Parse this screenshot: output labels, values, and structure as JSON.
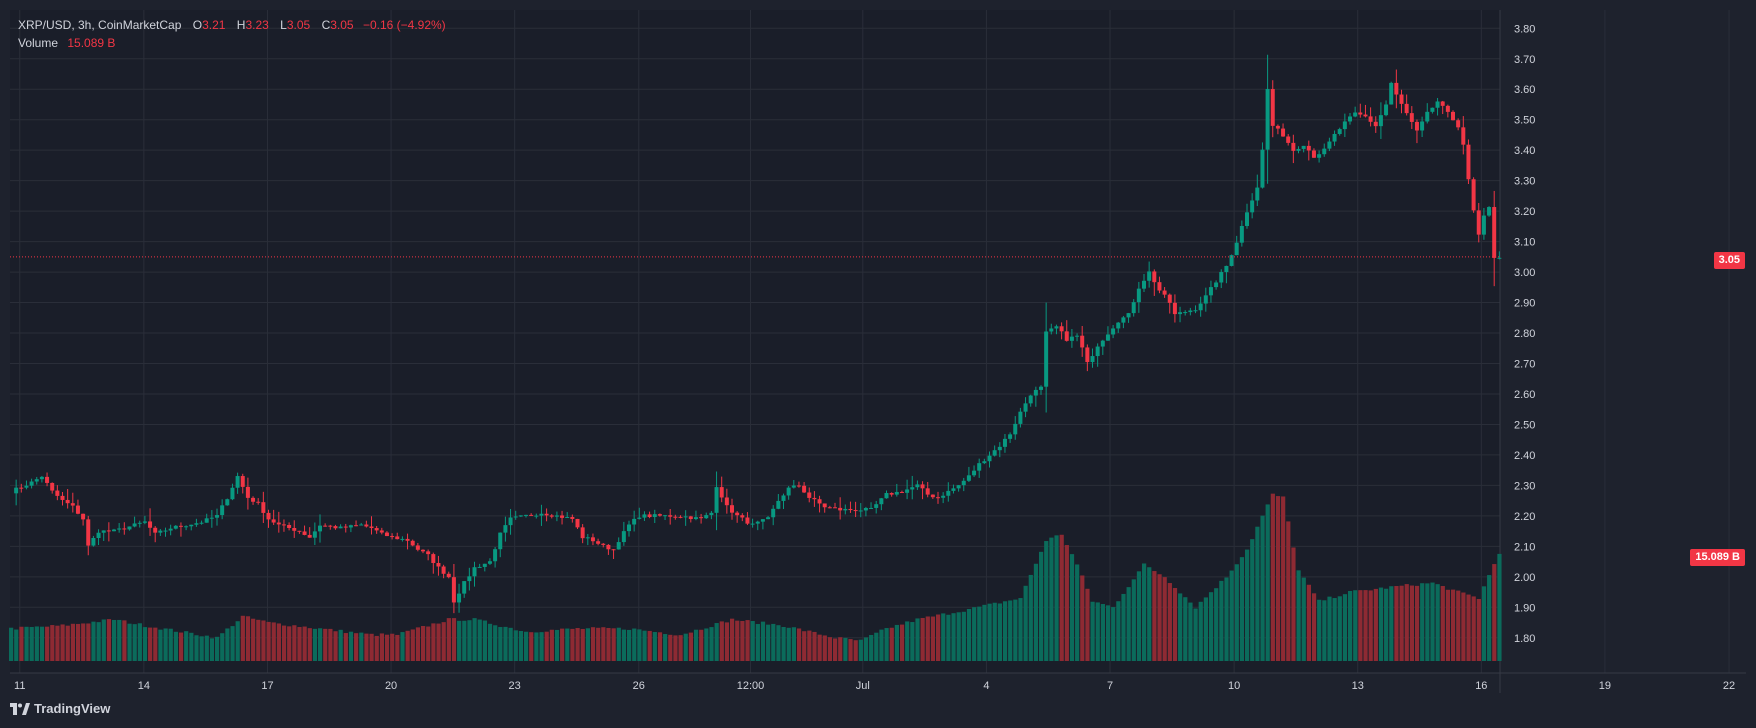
{
  "legend": {
    "title": "XRP/USD, 3h, CoinMarketCap",
    "o_label": "O",
    "o_value": "3.21",
    "h_label": "H",
    "h_value": "3.23",
    "l_label": "L",
    "l_value": "3.05",
    "c_label": "C",
    "c_value": "3.05",
    "change": "−0.16 (−4.92%)",
    "volume_label": "Volume",
    "volume_value": "15.089 B"
  },
  "price_tag": "3.05",
  "volume_tag": "15.089 B",
  "brand": "TradingView",
  "colors": {
    "background": "#1e222d",
    "grid": "#2a2e39",
    "up": "#089981",
    "down": "#f23645",
    "text": "#d1d4dc"
  },
  "chart_data": {
    "type": "candlestick",
    "title": "XRP/USD, 3h, CoinMarketCap",
    "interval": "3h",
    "y_ticks": [
      "3.80",
      "3.70",
      "3.60",
      "3.50",
      "3.40",
      "3.30",
      "3.20",
      "3.10",
      "3.00",
      "2.90",
      "2.80",
      "2.70",
      "2.60",
      "2.50",
      "2.40",
      "2.30",
      "2.20",
      "2.10",
      "2.00",
      "1.90",
      "1.80"
    ],
    "ylim": [
      1.75,
      3.86
    ],
    "x_ticks": [
      {
        "label": "11",
        "t": 1.7
      },
      {
        "label": "14",
        "t": 25.8
      },
      {
        "label": "17",
        "t": 49.8
      },
      {
        "label": "20",
        "t": 73.8
      },
      {
        "label": "23",
        "t": 97.8
      },
      {
        "label": "26",
        "t": 121.9
      },
      {
        "label": "12:00",
        "t": 143.6
      },
      {
        "label": "Jul",
        "t": 165.4
      },
      {
        "label": "4",
        "t": 189.4
      },
      {
        "label": "7",
        "t": 213.4
      },
      {
        "label": "10",
        "t": 237.5
      },
      {
        "label": "13",
        "t": 261.5
      },
      {
        "label": "16",
        "t": 285.5
      },
      {
        "label": "19",
        "t": 309.5
      },
      {
        "label": "22",
        "t": 333.6
      }
    ],
    "last_price": 3.05,
    "last_volume": "15.089B",
    "close_anchors": [
      [
        0,
        2.28
      ],
      [
        4,
        2.31
      ],
      [
        6,
        2.33
      ],
      [
        8,
        2.28
      ],
      [
        10,
        2.25
      ],
      [
        12,
        2.23
      ],
      [
        14,
        2.19
      ],
      [
        15,
        2.1
      ],
      [
        17,
        2.15
      ],
      [
        20,
        2.15
      ],
      [
        24,
        2.17
      ],
      [
        26,
        2.18
      ],
      [
        28,
        2.14
      ],
      [
        31,
        2.16
      ],
      [
        34,
        2.17
      ],
      [
        37,
        2.18
      ],
      [
        40,
        2.2
      ],
      [
        42,
        2.26
      ],
      [
        44,
        2.33
      ],
      [
        46,
        2.26
      ],
      [
        48,
        2.24
      ],
      [
        50,
        2.19
      ],
      [
        52,
        2.17
      ],
      [
        56,
        2.15
      ],
      [
        58,
        2.13
      ],
      [
        60,
        2.17
      ],
      [
        64,
        2.16
      ],
      [
        68,
        2.17
      ],
      [
        70,
        2.16
      ],
      [
        72,
        2.14
      ],
      [
        74,
        2.13
      ],
      [
        77,
        2.12
      ],
      [
        79,
        2.09
      ],
      [
        81,
        2.07
      ],
      [
        83,
        2.03
      ],
      [
        85,
        2.0
      ],
      [
        86,
        1.92
      ],
      [
        88,
        1.98
      ],
      [
        90,
        2.03
      ],
      [
        93,
        2.05
      ],
      [
        95,
        2.14
      ],
      [
        97,
        2.19
      ],
      [
        100,
        2.2
      ],
      [
        103,
        2.21
      ],
      [
        106,
        2.2
      ],
      [
        109,
        2.19
      ],
      [
        111,
        2.13
      ],
      [
        113,
        2.12
      ],
      [
        115,
        2.1
      ],
      [
        117,
        2.09
      ],
      [
        118,
        2.12
      ],
      [
        120,
        2.17
      ],
      [
        122,
        2.2
      ],
      [
        126,
        2.2
      ],
      [
        130,
        2.2
      ],
      [
        134,
        2.19
      ],
      [
        136,
        2.21
      ],
      [
        137,
        2.3
      ],
      [
        139,
        2.23
      ],
      [
        141,
        2.2
      ],
      [
        144,
        2.17
      ],
      [
        147,
        2.19
      ],
      [
        149,
        2.25
      ],
      [
        151,
        2.29
      ],
      [
        153,
        2.3
      ],
      [
        155,
        2.26
      ],
      [
        158,
        2.23
      ],
      [
        161,
        2.22
      ],
      [
        164,
        2.22
      ],
      [
        167,
        2.22
      ],
      [
        170,
        2.27
      ],
      [
        173,
        2.28
      ],
      [
        176,
        2.3
      ],
      [
        178,
        2.27
      ],
      [
        180,
        2.26
      ],
      [
        182,
        2.28
      ],
      [
        184,
        2.3
      ],
      [
        186,
        2.33
      ],
      [
        188,
        2.37
      ],
      [
        190,
        2.4
      ],
      [
        192,
        2.43
      ],
      [
        194,
        2.47
      ],
      [
        196,
        2.54
      ],
      [
        198,
        2.6
      ],
      [
        200,
        2.62
      ],
      [
        201,
        2.8
      ],
      [
        203,
        2.82
      ],
      [
        205,
        2.78
      ],
      [
        207,
        2.79
      ],
      [
        208,
        2.75
      ],
      [
        209,
        2.7
      ],
      [
        211,
        2.76
      ],
      [
        213,
        2.8
      ],
      [
        215,
        2.84
      ],
      [
        217,
        2.86
      ],
      [
        219,
        2.95
      ],
      [
        221,
        3.0
      ],
      [
        223,
        2.94
      ],
      [
        225,
        2.9
      ],
      [
        226,
        2.86
      ],
      [
        228,
        2.87
      ],
      [
        230,
        2.88
      ],
      [
        232,
        2.92
      ],
      [
        234,
        2.97
      ],
      [
        236,
        3.02
      ],
      [
        238,
        3.1
      ],
      [
        240,
        3.2
      ],
      [
        242,
        3.28
      ],
      [
        243,
        3.4
      ],
      [
        244,
        3.6
      ],
      [
        245,
        3.48
      ],
      [
        247,
        3.45
      ],
      [
        249,
        3.4
      ],
      [
        251,
        3.42
      ],
      [
        253,
        3.38
      ],
      [
        255,
        3.4
      ],
      [
        257,
        3.45
      ],
      [
        259,
        3.49
      ],
      [
        261,
        3.52
      ],
      [
        263,
        3.51
      ],
      [
        265,
        3.48
      ],
      [
        267,
        3.55
      ],
      [
        268,
        3.62
      ],
      [
        269,
        3.58
      ],
      [
        271,
        3.52
      ],
      [
        273,
        3.46
      ],
      [
        275,
        3.52
      ],
      [
        277,
        3.56
      ],
      [
        279,
        3.52
      ],
      [
        281,
        3.48
      ],
      [
        282,
        3.42
      ],
      [
        283,
        3.3
      ],
      [
        284,
        3.2
      ],
      [
        285,
        3.12
      ],
      [
        286,
        3.18
      ],
      [
        287,
        3.21
      ],
      [
        288,
        3.05
      ]
    ],
    "volume_anchors": [
      [
        0,
        1.83
      ],
      [
        10,
        1.84
      ],
      [
        20,
        1.86
      ],
      [
        26,
        1.84
      ],
      [
        40,
        1.8
      ],
      [
        45,
        1.87
      ],
      [
        50,
        1.85
      ],
      [
        60,
        1.83
      ],
      [
        70,
        1.81
      ],
      [
        75,
        1.81
      ],
      [
        85,
        1.86
      ],
      [
        90,
        1.86
      ],
      [
        100,
        1.82
      ],
      [
        110,
        1.83
      ],
      [
        120,
        1.83
      ],
      [
        130,
        1.81
      ],
      [
        136,
        1.84
      ],
      [
        140,
        1.86
      ],
      [
        150,
        1.84
      ],
      [
        160,
        1.8
      ],
      [
        165,
        1.79
      ],
      [
        170,
        1.83
      ],
      [
        176,
        1.86
      ],
      [
        185,
        1.89
      ],
      [
        196,
        1.93
      ],
      [
        201,
        2.12
      ],
      [
        204,
        2.14
      ],
      [
        207,
        2.04
      ],
      [
        210,
        1.92
      ],
      [
        214,
        1.9
      ],
      [
        220,
        2.04
      ],
      [
        224,
        2.0
      ],
      [
        230,
        1.9
      ],
      [
        236,
        2.0
      ],
      [
        240,
        2.09
      ],
      [
        243,
        2.2
      ],
      [
        245,
        2.27
      ],
      [
        247,
        2.26
      ],
      [
        250,
        2.02
      ],
      [
        254,
        1.92
      ],
      [
        260,
        1.95
      ],
      [
        270,
        1.97
      ],
      [
        276,
        1.98
      ],
      [
        281,
        1.95
      ],
      [
        285,
        1.93
      ],
      [
        289,
        2.08
      ]
    ]
  }
}
